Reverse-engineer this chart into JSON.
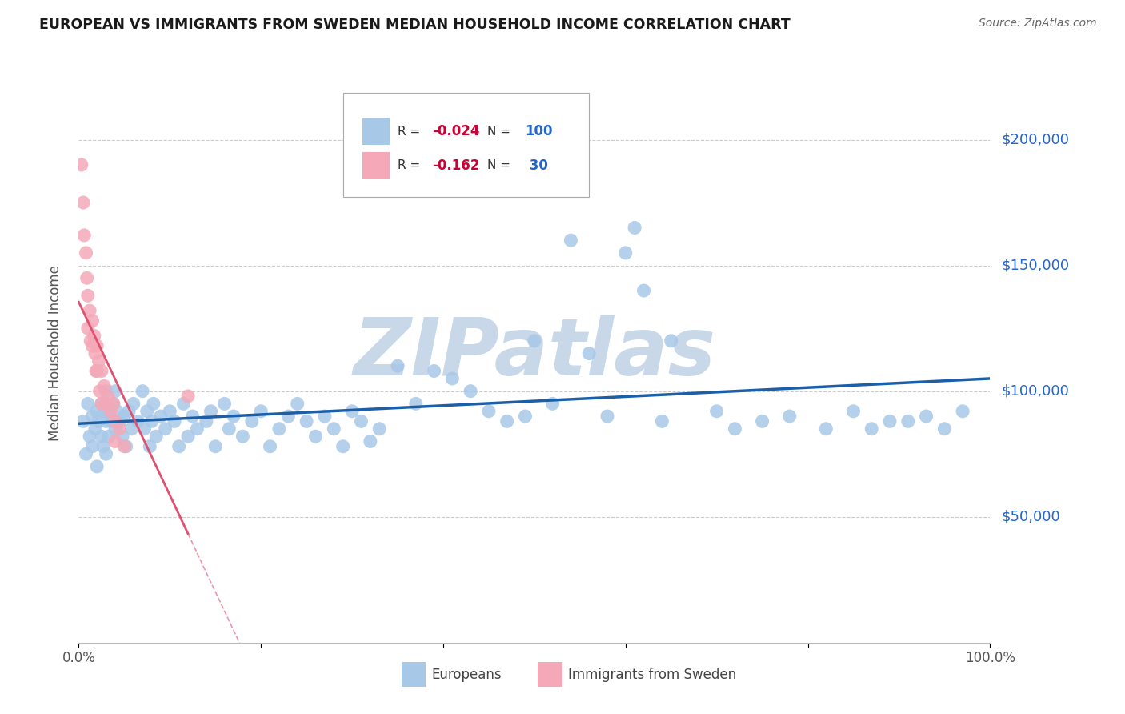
{
  "title": "EUROPEAN VS IMMIGRANTS FROM SWEDEN MEDIAN HOUSEHOLD INCOME CORRELATION CHART",
  "source": "Source: ZipAtlas.com",
  "ylabel": "Median Household Income",
  "xlim": [
    0,
    1.0
  ],
  "ylim": [
    0,
    230000
  ],
  "ytick_positions": [
    50000,
    100000,
    150000,
    200000
  ],
  "ytick_labels": [
    "$50,000",
    "$100,000",
    "$150,000",
    "$200,000"
  ],
  "europeans_color": "#a8c8e8",
  "immigrants_color": "#f4a8b8",
  "europeans_line_color": "#1a5fa8",
  "immigrants_line_color": "#e05070",
  "legend_R_color": "#cc0033",
  "legend_N_color": "#2266cc",
  "watermark": "ZIPatlas",
  "watermark_color": "#c8d8e8",
  "background_color": "#ffffff",
  "grid_color": "#cccccc",
  "europeans_x": [
    0.005,
    0.008,
    0.01,
    0.012,
    0.015,
    0.015,
    0.018,
    0.02,
    0.02,
    0.022,
    0.025,
    0.025,
    0.027,
    0.028,
    0.03,
    0.03,
    0.03,
    0.032,
    0.033,
    0.035,
    0.038,
    0.04,
    0.04,
    0.042,
    0.045,
    0.048,
    0.05,
    0.052,
    0.055,
    0.058,
    0.06,
    0.065,
    0.07,
    0.072,
    0.075,
    0.078,
    0.08,
    0.082,
    0.085,
    0.09,
    0.095,
    0.1,
    0.105,
    0.11,
    0.115,
    0.12,
    0.125,
    0.13,
    0.14,
    0.145,
    0.15,
    0.16,
    0.165,
    0.17,
    0.18,
    0.19,
    0.2,
    0.21,
    0.22,
    0.23,
    0.24,
    0.25,
    0.26,
    0.27,
    0.28,
    0.29,
    0.3,
    0.31,
    0.32,
    0.33,
    0.35,
    0.37,
    0.39,
    0.41,
    0.43,
    0.45,
    0.47,
    0.49,
    0.5,
    0.52,
    0.54,
    0.56,
    0.58,
    0.6,
    0.61,
    0.62,
    0.64,
    0.65,
    0.7,
    0.72,
    0.75,
    0.78,
    0.82,
    0.85,
    0.87,
    0.89,
    0.91,
    0.93,
    0.95,
    0.97
  ],
  "europeans_y": [
    88000,
    75000,
    95000,
    82000,
    90000,
    78000,
    85000,
    92000,
    70000,
    88000,
    95000,
    82000,
    78000,
    92000,
    100000,
    88000,
    75000,
    90000,
    82000,
    88000,
    95000,
    100000,
    85000,
    92000,
    88000,
    82000,
    90000,
    78000,
    92000,
    85000,
    95000,
    88000,
    100000,
    85000,
    92000,
    78000,
    88000,
    95000,
    82000,
    90000,
    85000,
    92000,
    88000,
    78000,
    95000,
    82000,
    90000,
    85000,
    88000,
    92000,
    78000,
    95000,
    85000,
    90000,
    82000,
    88000,
    92000,
    78000,
    85000,
    90000,
    95000,
    88000,
    82000,
    90000,
    85000,
    78000,
    92000,
    88000,
    80000,
    85000,
    110000,
    95000,
    108000,
    105000,
    100000,
    92000,
    88000,
    90000,
    120000,
    95000,
    160000,
    115000,
    90000,
    155000,
    165000,
    140000,
    88000,
    120000,
    92000,
    85000,
    88000,
    90000,
    85000,
    92000,
    85000,
    88000,
    88000,
    90000,
    85000,
    92000
  ],
  "immigrants_x": [
    0.003,
    0.005,
    0.006,
    0.008,
    0.009,
    0.01,
    0.01,
    0.012,
    0.013,
    0.015,
    0.015,
    0.017,
    0.018,
    0.019,
    0.02,
    0.02,
    0.022,
    0.023,
    0.025,
    0.025,
    0.028,
    0.03,
    0.032,
    0.035,
    0.038,
    0.04,
    0.04,
    0.045,
    0.05,
    0.12
  ],
  "immigrants_y": [
    190000,
    175000,
    162000,
    155000,
    145000,
    138000,
    125000,
    132000,
    120000,
    128000,
    118000,
    122000,
    115000,
    108000,
    118000,
    108000,
    112000,
    100000,
    108000,
    95000,
    102000,
    95000,
    98000,
    92000,
    95000,
    88000,
    80000,
    85000,
    78000,
    98000
  ],
  "europeans_R": -0.024,
  "europeans_N": 100,
  "immigrants_R": -0.162,
  "immigrants_N": 30
}
